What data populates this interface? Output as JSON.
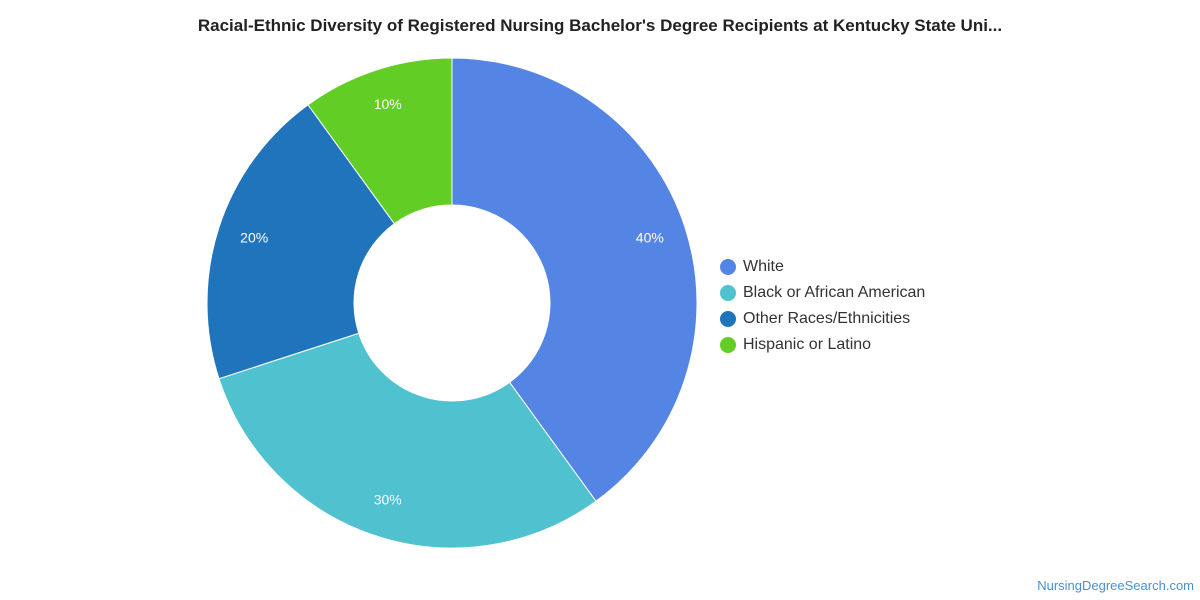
{
  "chart_data": {
    "type": "pie",
    "donut": true,
    "title": "Racial-Ethnic Diversity of Registered Nursing Bachelor's Degree Recipients at Kentucky State Uni...",
    "categories": [
      "White",
      "Black or African American",
      "Other Races/Ethnicities",
      "Hispanic or Latino"
    ],
    "values": [
      40,
      30,
      20,
      10
    ],
    "labels": [
      "40%",
      "30%",
      "20%",
      "10%"
    ],
    "colors": [
      "#5585e4",
      "#50c1cf",
      "#1f74bb",
      "#62cd24"
    ],
    "legend_position": "right"
  },
  "source": "NursingDegreeSearch.com"
}
